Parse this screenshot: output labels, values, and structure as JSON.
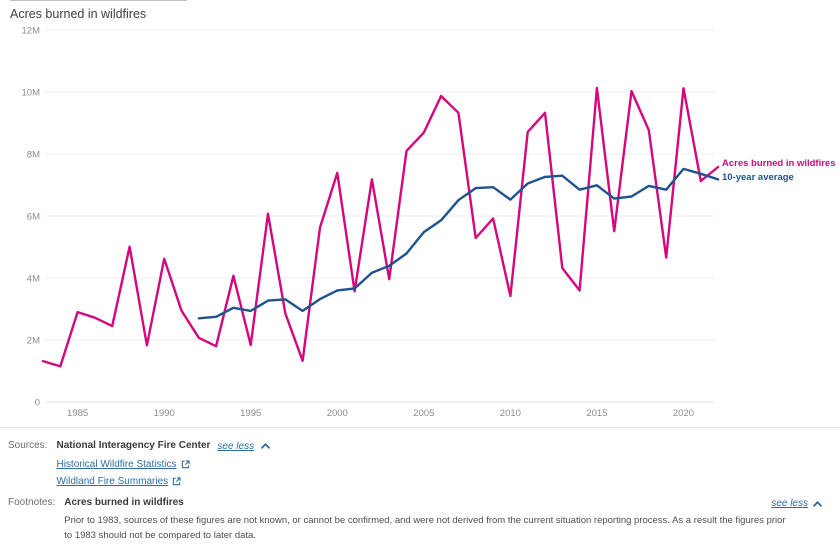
{
  "chart": {
    "title": "Acres burned in wildfires"
  },
  "chart_data": {
    "type": "line",
    "title": "Acres burned in wildfires",
    "unit": "millions of acres",
    "x": [
      1983,
      1984,
      1985,
      1986,
      1987,
      1988,
      1989,
      1990,
      1991,
      1992,
      1993,
      1994,
      1995,
      1996,
      1997,
      1998,
      1999,
      2000,
      2001,
      2002,
      2003,
      2004,
      2005,
      2006,
      2007,
      2008,
      2009,
      2010,
      2011,
      2012,
      2013,
      2014,
      2015,
      2016,
      2017,
      2018,
      2019,
      2020,
      2021,
      2022
    ],
    "series": [
      {
        "name": "Acres burned in wildfires",
        "color": "#d4087c",
        "values": [
          1.32,
          1.15,
          2.9,
          2.72,
          2.45,
          5.01,
          1.83,
          4.62,
          2.95,
          2.07,
          1.8,
          4.07,
          1.84,
          6.07,
          2.86,
          1.33,
          5.63,
          7.39,
          3.57,
          7.18,
          3.96,
          8.1,
          8.69,
          9.87,
          9.33,
          5.29,
          5.92,
          3.42,
          8.71,
          9.33,
          4.32,
          3.6,
          10.13,
          5.51,
          10.03,
          8.77,
          4.66,
          10.12,
          7.13,
          7.58
        ]
      },
      {
        "name": "10-year average",
        "color": "#1f538e",
        "values": [
          null,
          null,
          null,
          null,
          null,
          null,
          null,
          null,
          null,
          2.7,
          2.75,
          3.04,
          2.94,
          3.27,
          3.31,
          2.94,
          3.32,
          3.6,
          3.66,
          4.17,
          4.39,
          4.79,
          5.48,
          5.86,
          6.51,
          6.9,
          6.93,
          6.53,
          7.05,
          7.26,
          7.3,
          6.85,
          6.99,
          6.56,
          6.63,
          6.97,
          6.85,
          7.52,
          7.36,
          7.18
        ]
      }
    ],
    "ylim": [
      0,
      12
    ],
    "y_ticks": [
      {
        "value": 0,
        "label": "0"
      },
      {
        "value": 2,
        "label": "2M"
      },
      {
        "value": 4,
        "label": "4M"
      },
      {
        "value": 6,
        "label": "6M"
      },
      {
        "value": 8,
        "label": "8M"
      },
      {
        "value": 10,
        "label": "10M"
      },
      {
        "value": 12,
        "label": "12M"
      }
    ],
    "x_ticks": [
      "1985",
      "1990",
      "1995",
      "2000",
      "2005",
      "2010",
      "2015",
      "2020"
    ],
    "grid": "horizontal",
    "legend_position": "right-of-line-ends"
  },
  "sources": {
    "label": "Sources:",
    "name": "National Interagency Fire Center",
    "see_less_label": "see less",
    "links": [
      {
        "label": "Historical Wildfire Statistics"
      },
      {
        "label": "Wildland Fire Summaries"
      }
    ]
  },
  "footnotes": {
    "label": "Footnotes:",
    "title": "Acres burned in wildfires",
    "see_less_label": "see less",
    "text": "Prior to 1983, sources of these figures are not known, or cannot be confirmed, and were not derived from the current situation reporting process. As a result the figures prior to 1983 should not be compared to later data."
  },
  "colors": {
    "accent_pink": "#d4087c",
    "accent_blue": "#1f538e",
    "link_blue": "#2e6da4",
    "gridline": "#ececec",
    "tick_text": "#8c8c8c"
  }
}
